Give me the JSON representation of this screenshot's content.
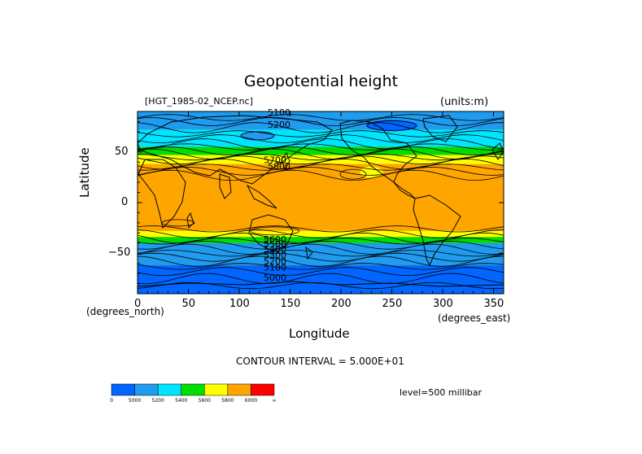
{
  "figure": {
    "title": "Geopotential height",
    "file_label": "[HGT_1985-02_NCEP.nc]",
    "units_label": "(units:m)",
    "contour_interval": "CONTOUR INTERVAL = 5.000E+01",
    "level_label": "level=500 millibar",
    "x_units_left": "(degrees_north)",
    "x_units_right": "(degrees_east)"
  },
  "chart_data": {
    "type": "heatmap",
    "title": "Geopotential height",
    "xlabel": "Longitude",
    "ylabel": "Latitude",
    "xlim": [
      0,
      360
    ],
    "ylim": [
      -90,
      90
    ],
    "x_ticks": [
      0,
      50,
      100,
      150,
      200,
      250,
      300,
      350
    ],
    "y_ticks": [
      50,
      0,
      -50
    ],
    "x_tick_labels": [
      "0",
      "50",
      "100",
      "150",
      "200",
      "250",
      "300",
      "350"
    ],
    "y_tick_labels": [
      "50",
      "0",
      "−50"
    ],
    "units": "m",
    "contour_interval": 50,
    "colorbar": {
      "colors": [
        "#0066ff",
        "#1f9bf0",
        "#00e5ff",
        "#00dd00",
        "#ffff00",
        "#ffa500",
        "#ff0000"
      ],
      "labels": [
        "0",
        "5000",
        "5200",
        "5400",
        "5600",
        "5800",
        "6000",
        "∞"
      ]
    },
    "contour_labels": [
      {
        "text": "5100",
        "lon": 128,
        "lat": 89
      },
      {
        "text": "5200",
        "lon": 128,
        "lat": 77
      },
      {
        "text": "5000",
        "lon": 124,
        "lat": -74
      },
      {
        "text": "5100",
        "lon": 124,
        "lat": -64
      },
      {
        "text": "5200",
        "lon": 124,
        "lat": -58
      },
      {
        "text": "5300",
        "lon": 124,
        "lat": -52
      },
      {
        "text": "5400",
        "lon": 124,
        "lat": -46
      },
      {
        "text": "5500",
        "lon": 124,
        "lat": -41
      },
      {
        "text": "5600",
        "lon": 124,
        "lat": -36
      },
      {
        "text": "5700",
        "lon": 124,
        "lat": 42
      },
      {
        "text": "5800",
        "lon": 128,
        "lat": 36
      }
    ]
  }
}
